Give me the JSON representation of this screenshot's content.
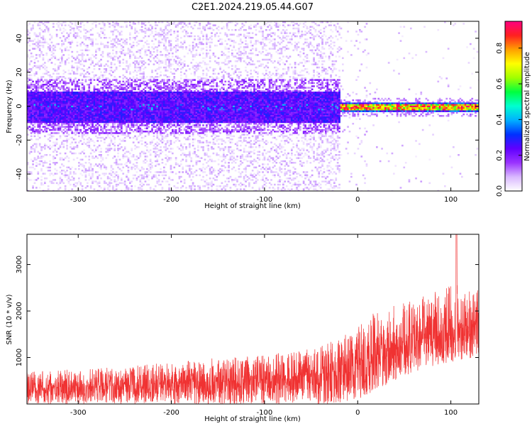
{
  "figure": {
    "title": "C2E1.2024.219.05.44.G07"
  },
  "chart_data": [
    {
      "type": "heatmap",
      "xlabel": "Height of straight line (km)",
      "ylabel": "Frequency (Hz)",
      "xlim": [
        -355,
        130
      ],
      "ylim": [
        -50,
        50
      ],
      "xticks": [
        -300,
        -200,
        -100,
        0,
        100
      ],
      "yticks": [
        -40,
        -20,
        0,
        20,
        40
      ],
      "xtick_labels": [
        "-300",
        "-200",
        "-100",
        "0",
        "100"
      ],
      "ytick_labels": [
        "-40",
        "-20",
        "0",
        "20",
        "40"
      ],
      "description_regions": [
        {
          "x_range": [
            -355,
            -20
          ],
          "core_band_hz": [
            -9,
            9
          ],
          "peak_norm_amp": 0.3
        },
        {
          "x_range": [
            -20,
            130
          ],
          "core_band_hz": [
            -3,
            3
          ],
          "peak_norm_amp": 0.9
        }
      ],
      "colorbar": {
        "label": "Normalized spectral amplitude",
        "range": [
          0.0,
          0.95
        ],
        "ticks": [
          0.0,
          0.2,
          0.4,
          0.6,
          0.8
        ],
        "tick_labels": [
          "0.0",
          "0.2",
          "0.4",
          "0.6",
          "0.8"
        ],
        "colormap": [
          "#ffffff",
          "#d9b8ff",
          "#9a33ff",
          "#6000ff",
          "#0030ff",
          "#00b0ff",
          "#00ffd0",
          "#00ff40",
          "#a0ff00",
          "#ffff00",
          "#ffa000",
          "#ff2020",
          "#ff0080"
        ]
      }
    },
    {
      "type": "line",
      "xlabel": "Height of straight line (km)",
      "ylabel": "SNR (10 * v/v)",
      "xlim": [
        -355,
        130
      ],
      "ylim": [
        0,
        3650
      ],
      "xticks": [
        -300,
        -200,
        -100,
        0,
        100
      ],
      "yticks": [
        1000,
        2000,
        3000
      ],
      "xtick_labels": [
        "-300",
        "-200",
        "-100",
        "0",
        "100"
      ],
      "ytick_labels": [
        "1000",
        "2000",
        "3000"
      ],
      "color": "#f03232",
      "envelope": {
        "x": [
          -355,
          -300,
          -250,
          -200,
          -150,
          -100,
          -50,
          -20,
          0,
          20,
          50,
          80,
          100,
          130
        ],
        "low": [
          0,
          0,
          0,
          0,
          0,
          0,
          0,
          0,
          100,
          300,
          600,
          800,
          900,
          1000
        ],
        "mid": [
          330,
          360,
          400,
          450,
          480,
          520,
          600,
          720,
          850,
          1050,
          1250,
          1450,
          1550,
          1700
        ],
        "high": [
          700,
          750,
          800,
          900,
          1000,
          1050,
          1200,
          1400,
          1700,
          2000,
          2200,
          2400,
          2600,
          2500
        ]
      },
      "spike": {
        "x": 106,
        "y": 3650
      }
    }
  ]
}
